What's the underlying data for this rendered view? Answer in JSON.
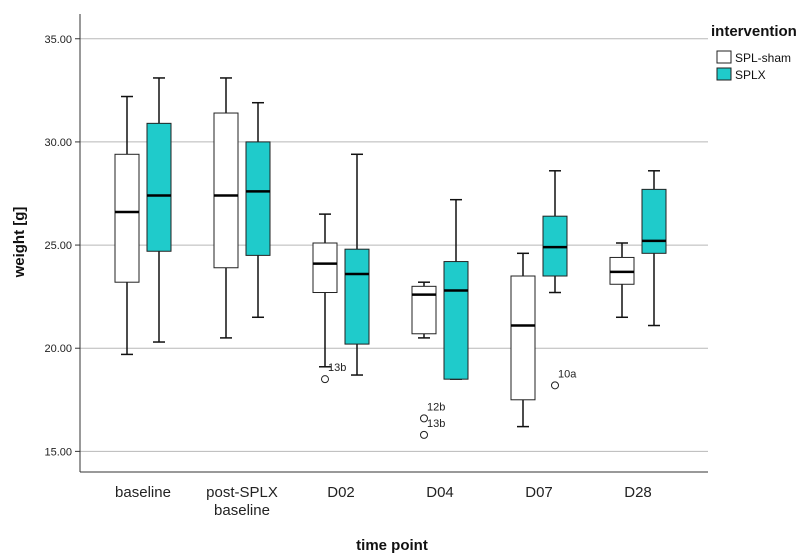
{
  "chart_data": {
    "type": "boxplot",
    "xlabel": "time point",
    "ylabel": "weight [g]",
    "ylim": [
      14.0,
      36.2
    ],
    "yticks": [
      "15.00",
      "20.00",
      "25.00",
      "30.00",
      "35.00"
    ],
    "ytick_values": [
      15,
      20,
      25,
      30,
      35
    ],
    "grid": "horizontal",
    "legend_position": "top-right",
    "legend_title": "intervention",
    "series_colors": {
      "SPL-sham": "#ffffff",
      "SPLX": "#1fcbcb"
    },
    "categories": [
      {
        "label_lines": [
          "baseline"
        ]
      },
      {
        "label_lines": [
          "post-SPLX",
          "baseline"
        ]
      },
      {
        "label_lines": [
          "D02"
        ]
      },
      {
        "label_lines": [
          "D04"
        ]
      },
      {
        "label_lines": [
          "D07"
        ]
      },
      {
        "label_lines": [
          "D28"
        ]
      }
    ],
    "series": [
      {
        "name": "SPL-sham",
        "color": "#ffffff",
        "boxes": [
          {
            "min": 19.7,
            "q1": 23.2,
            "median": 26.6,
            "q3": 29.4,
            "max": 32.2,
            "outliers": []
          },
          {
            "min": 20.5,
            "q1": 23.9,
            "median": 27.4,
            "q3": 31.4,
            "max": 33.1,
            "outliers": []
          },
          {
            "min": 19.1,
            "q1": 22.7,
            "median": 24.1,
            "q3": 25.1,
            "max": 26.5,
            "outliers": [
              {
                "value": 18.5,
                "label": "13b"
              }
            ]
          },
          {
            "min": 20.5,
            "q1": 20.7,
            "median": 22.6,
            "q3": 23.0,
            "max": 23.2,
            "outliers": [
              {
                "value": 16.6,
                "label": "12b"
              },
              {
                "value": 15.8,
                "label": "13b"
              }
            ]
          },
          {
            "min": 16.2,
            "q1": 17.5,
            "median": 21.1,
            "q3": 23.5,
            "max": 24.6,
            "outliers": []
          },
          {
            "min": 21.5,
            "q1": 23.1,
            "median": 23.7,
            "q3": 24.4,
            "max": 25.1,
            "outliers": []
          }
        ]
      },
      {
        "name": "SPLX",
        "color": "#1fcbcb",
        "boxes": [
          {
            "min": 20.3,
            "q1": 24.7,
            "median": 27.4,
            "q3": 30.9,
            "max": 33.1,
            "outliers": []
          },
          {
            "min": 21.5,
            "q1": 24.5,
            "median": 27.6,
            "q3": 30.0,
            "max": 31.9,
            "outliers": []
          },
          {
            "min": 18.7,
            "q1": 20.2,
            "median": 23.6,
            "q3": 24.8,
            "max": 29.4,
            "outliers": []
          },
          {
            "min": 18.5,
            "q1": 18.5,
            "median": 22.8,
            "q3": 24.2,
            "max": 27.2,
            "outliers": []
          },
          {
            "min": 22.7,
            "q1": 23.5,
            "median": 24.9,
            "q3": 26.4,
            "max": 28.6,
            "outliers": [
              {
                "value": 18.2,
                "label": "10a"
              }
            ]
          },
          {
            "min": 21.1,
            "q1": 24.6,
            "median": 25.2,
            "q3": 27.7,
            "max": 28.6,
            "outliers": []
          }
        ]
      }
    ]
  }
}
